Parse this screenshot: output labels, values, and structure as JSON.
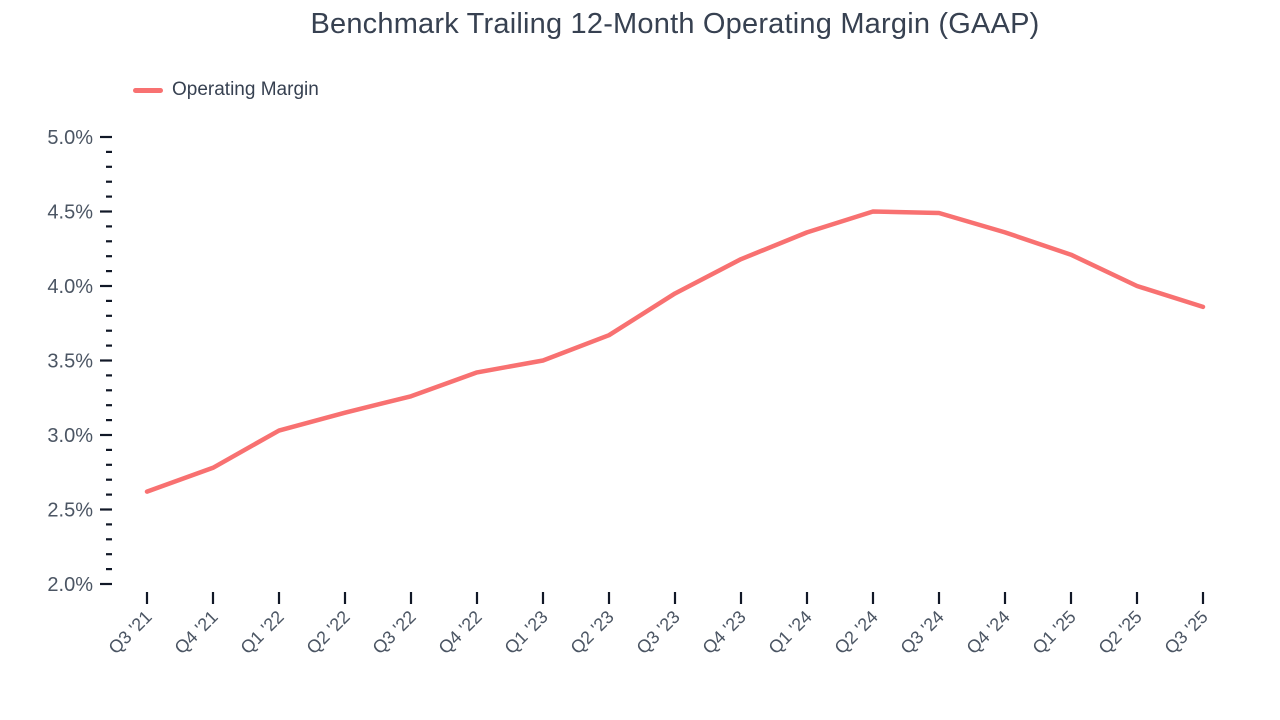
{
  "title": "Benchmark Trailing 12-Month Operating Margin (GAAP)",
  "legend": {
    "label": "Operating Margin",
    "swatch_color": "#f87171"
  },
  "chart_data": {
    "type": "line",
    "title": "Benchmark Trailing 12-Month Operating Margin (GAAP)",
    "categories": [
      "Q3 '21",
      "Q4 '21",
      "Q1 '22",
      "Q2 '22",
      "Q3 '22",
      "Q4 '22",
      "Q1 '23",
      "Q2 '23",
      "Q3 '23",
      "Q4 '23",
      "Q1 '24",
      "Q2 '24",
      "Q3 '24",
      "Q4 '24",
      "Q1 '25",
      "Q2 '25",
      "Q3 '25"
    ],
    "series": [
      {
        "name": "Operating Margin",
        "color": "#f87171",
        "values": [
          2.62,
          2.78,
          3.03,
          3.15,
          3.26,
          3.42,
          3.5,
          3.67,
          3.95,
          4.18,
          4.36,
          4.5,
          4.49,
          4.36,
          4.21,
          4.0,
          3.86
        ]
      }
    ],
    "xlabel": "",
    "ylabel": "",
    "y_axis": {
      "min": 2.0,
      "max": 5.0,
      "major_step": 0.5,
      "minor_step": 0.1,
      "tick_labels": [
        "2.0%",
        "2.5%",
        "3.0%",
        "3.5%",
        "4.0%",
        "4.5%",
        "5.0%"
      ],
      "unit": "%"
    },
    "grid": false,
    "legend_position": "top-left",
    "colors": {
      "tick_mark": "#111827",
      "axis_label": "#4b5563",
      "title": "#374151"
    }
  }
}
